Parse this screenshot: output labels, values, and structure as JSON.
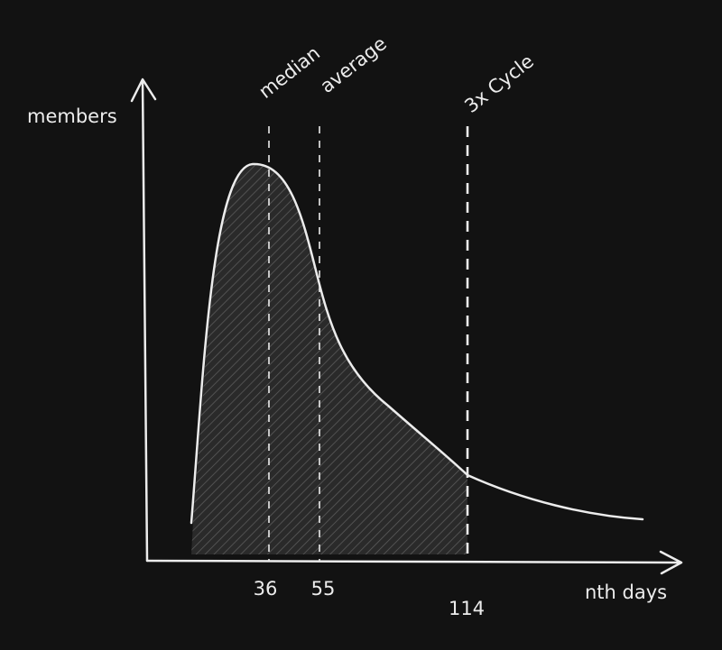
{
  "axes": {
    "y_label": "members",
    "x_label": "nth days"
  },
  "markers": [
    {
      "label": "median",
      "tick": "36"
    },
    {
      "label": "average",
      "tick": "55"
    },
    {
      "label": "3x Cycle",
      "tick": "114"
    }
  ]
}
